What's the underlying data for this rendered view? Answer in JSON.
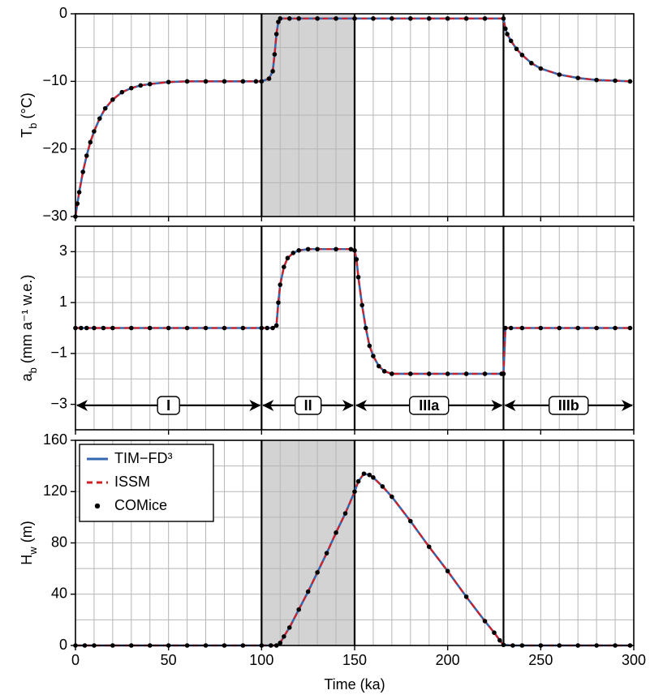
{
  "chart_data": [
    {
      "type": "line",
      "ylabel": {
        "text": "T",
        "sub": "b",
        "unit": " (°C)"
      },
      "xlim": [
        0,
        300
      ],
      "xticks": [
        0,
        50,
        100,
        150,
        200,
        250,
        300
      ],
      "show_xtick_labels": false,
      "xgrid": [
        10,
        20,
        30,
        40,
        50,
        60,
        70,
        80,
        90,
        110,
        120,
        130,
        140,
        160,
        170,
        180,
        190,
        200,
        210,
        220,
        240,
        250,
        260,
        270,
        280,
        290
      ],
      "ylim": [
        -30,
        0
      ],
      "yticks": [
        {
          "value": -30,
          "label": "−30"
        },
        {
          "value": -20,
          "label": "−20"
        },
        {
          "value": -10,
          "label": "−10"
        },
        0
      ],
      "ygrid": [
        -25,
        -20,
        -15,
        -10,
        -5
      ],
      "shade": [
        100,
        150
      ],
      "vlines": [
        100,
        150,
        230
      ],
      "x": [
        0,
        1,
        2,
        4,
        6,
        8,
        10,
        13,
        16,
        20,
        25,
        30,
        35,
        40,
        50,
        60,
        70,
        80,
        90,
        97,
        100,
        104,
        106,
        107,
        108,
        109,
        110,
        115,
        120,
        130,
        140,
        150,
        160,
        170,
        180,
        190,
        200,
        210,
        220,
        230,
        231,
        232,
        234,
        237,
        240,
        245,
        250,
        260,
        270,
        280,
        290,
        298
      ],
      "series": [
        {
          "color": "#3566b0",
          "style": "solid",
          "values": [
            -30,
            -28.1,
            -26.4,
            -23.4,
            -21,
            -19,
            -17.4,
            -15.5,
            -14,
            -12.7,
            -11.6,
            -11,
            -10.6,
            -10.4,
            -10.1,
            -10,
            -10,
            -10,
            -10,
            -10,
            -10,
            -9.6,
            -8.5,
            -6,
            -3,
            -1.2,
            -0.7,
            -0.7,
            -0.7,
            -0.7,
            -0.7,
            -0.7,
            -0.7,
            -0.7,
            -0.7,
            -0.7,
            -0.7,
            -0.7,
            -0.7,
            -0.7,
            -2.2,
            -3,
            -4,
            -5.2,
            -6.1,
            -7.3,
            -8.1,
            -9,
            -9.5,
            -9.8,
            -9.9,
            -10
          ]
        },
        {
          "color": "#d21f26",
          "style": "dashed",
          "values": [
            -30,
            -28.1,
            -26.4,
            -23.4,
            -21,
            -19,
            -17.4,
            -15.5,
            -14,
            -12.7,
            -11.6,
            -11,
            -10.6,
            -10.4,
            -10.1,
            -10,
            -10,
            -10,
            -10,
            -10,
            -10,
            -9.6,
            -8.5,
            -6,
            -3,
            -1.2,
            -0.7,
            -0.7,
            -0.7,
            -0.7,
            -0.7,
            -0.7,
            -0.7,
            -0.7,
            -0.7,
            -0.7,
            -0.7,
            -0.7,
            -0.7,
            -0.7,
            -2.2,
            -3,
            -4,
            -5.2,
            -6.1,
            -7.3,
            -8.1,
            -9,
            -9.5,
            -9.8,
            -9.9,
            -10
          ]
        },
        {
          "color": "#000000",
          "style": "dots",
          "values": [
            -30,
            -28.1,
            -26.4,
            -23.4,
            -21,
            -19,
            -17.4,
            -15.5,
            -14,
            -12.7,
            -11.6,
            -11,
            -10.6,
            -10.4,
            -10.1,
            -10,
            -10,
            -10,
            -10,
            -10,
            -10,
            -9.6,
            -8.5,
            -6,
            -3,
            -1.2,
            -0.7,
            -0.7,
            -0.7,
            -0.7,
            -0.7,
            -0.7,
            -0.7,
            -0.7,
            -0.7,
            -0.7,
            -0.7,
            -0.7,
            -0.7,
            -0.7,
            -2.2,
            -3,
            -4,
            -5.2,
            -6.1,
            -7.3,
            -8.1,
            -9,
            -9.5,
            -9.8,
            -9.9,
            -10
          ]
        }
      ]
    },
    {
      "type": "line",
      "ylabel": {
        "text": "a",
        "sub": "b",
        "unit": " (mm a⁻¹ w.e.)"
      },
      "xlim": [
        0,
        300
      ],
      "xticks": [
        0,
        50,
        100,
        150,
        200,
        250,
        300
      ],
      "show_xtick_labels": false,
      "xgrid": [
        10,
        20,
        30,
        40,
        50,
        60,
        70,
        80,
        90,
        110,
        120,
        130,
        140,
        160,
        170,
        180,
        190,
        200,
        210,
        220,
        240,
        250,
        260,
        270,
        280,
        290
      ],
      "ylim": [
        -4,
        4
      ],
      "yticks": [
        {
          "value": -3,
          "label": "−3"
        },
        {
          "value": -1,
          "label": "−1"
        },
        1,
        3
      ],
      "ygrid": [
        -3,
        -2,
        -1,
        0,
        1,
        2,
        3
      ],
      "vlines": [
        100,
        150,
        230
      ],
      "phases": [
        {
          "label": "I",
          "start": 0,
          "end": 100
        },
        {
          "label": "II",
          "start": 100,
          "end": 150
        },
        {
          "label": "IIIa",
          "start": 150,
          "end": 230
        },
        {
          "label": "IIIb",
          "start": 230,
          "end": 300
        }
      ],
      "x": [
        0,
        3,
        6,
        10,
        15,
        20,
        30,
        40,
        50,
        60,
        70,
        80,
        90,
        100,
        103,
        106,
        108,
        109,
        110,
        112,
        114,
        117,
        120,
        125,
        130,
        140,
        148,
        150,
        151,
        152,
        154,
        156,
        158,
        160,
        163,
        166,
        170,
        180,
        190,
        200,
        210,
        220,
        229,
        230,
        231,
        234,
        240,
        250,
        260,
        270,
        280,
        290,
        298
      ],
      "series": [
        {
          "color": "#3566b0",
          "style": "solid",
          "values": [
            0,
            0,
            0,
            0,
            0,
            0,
            0,
            0,
            0,
            0,
            0,
            0,
            0,
            0,
            0,
            0,
            0.1,
            1,
            1.7,
            2.4,
            2.75,
            2.95,
            3.05,
            3.1,
            3.1,
            3.1,
            3.1,
            3.05,
            2.7,
            2,
            0.9,
            0,
            -0.7,
            -1.1,
            -1.5,
            -1.7,
            -1.8,
            -1.8,
            -1.8,
            -1.8,
            -1.8,
            -1.8,
            -1.8,
            -1.8,
            0,
            0,
            0,
            0,
            0,
            0,
            0,
            0,
            0
          ]
        },
        {
          "color": "#d21f26",
          "style": "dashed",
          "values": [
            0,
            0,
            0,
            0,
            0,
            0,
            0,
            0,
            0,
            0,
            0,
            0,
            0,
            0,
            0,
            0,
            0.1,
            1,
            1.7,
            2.4,
            2.75,
            2.95,
            3.05,
            3.1,
            3.1,
            3.1,
            3.1,
            3.05,
            2.7,
            2,
            0.9,
            0,
            -0.7,
            -1.1,
            -1.5,
            -1.7,
            -1.8,
            -1.8,
            -1.8,
            -1.8,
            -1.8,
            -1.8,
            -1.8,
            -1.8,
            0,
            0,
            0,
            0,
            0,
            0,
            0,
            0,
            0
          ]
        },
        {
          "color": "#000000",
          "style": "dots",
          "values": [
            0,
            0,
            0,
            0,
            0,
            0,
            0,
            0,
            0,
            0,
            0,
            0,
            0,
            0,
            0,
            0,
            0.1,
            1,
            1.7,
            2.4,
            2.75,
            2.95,
            3.05,
            3.1,
            3.1,
            3.1,
            3.1,
            3.05,
            2.7,
            2,
            0.9,
            0,
            -0.7,
            -1.1,
            -1.5,
            -1.7,
            -1.8,
            -1.8,
            -1.8,
            -1.8,
            -1.8,
            -1.8,
            -1.8,
            -1.8,
            0,
            0,
            0,
            0,
            0,
            0,
            0,
            0,
            0
          ]
        }
      ]
    },
    {
      "type": "line",
      "ylabel": {
        "text": "H",
        "sub": "w",
        "unit": " (m)"
      },
      "xlabel": "Time (ka)",
      "xlim": [
        0,
        300
      ],
      "xticks": [
        0,
        50,
        100,
        150,
        200,
        250,
        300
      ],
      "show_xtick_labels": true,
      "xgrid": [
        10,
        20,
        30,
        40,
        50,
        60,
        70,
        80,
        90,
        110,
        120,
        130,
        140,
        160,
        170,
        180,
        190,
        200,
        210,
        220,
        240,
        250,
        260,
        270,
        280,
        290
      ],
      "ylim": [
        0,
        160
      ],
      "yticks": [
        0,
        40,
        80,
        120,
        160
      ],
      "ygrid": [
        20,
        40,
        60,
        80,
        100,
        120,
        140
      ],
      "shade": [
        100,
        150
      ],
      "vlines": [
        100,
        150,
        230
      ],
      "legend": "top-left",
      "x": [
        0,
        5,
        10,
        20,
        30,
        40,
        50,
        60,
        70,
        80,
        90,
        100,
        105,
        108,
        110,
        112,
        115,
        120,
        125,
        130,
        135,
        140,
        145,
        150,
        152,
        155,
        158,
        160,
        165,
        170,
        180,
        190,
        200,
        210,
        220,
        225,
        228,
        230,
        235,
        240,
        250,
        260,
        270,
        280,
        290,
        298
      ],
      "series": [
        {
          "name": "TIM−FD³",
          "color": "#3566b0",
          "style": "solid",
          "values": [
            0,
            0,
            0,
            0,
            0,
            0,
            0,
            0,
            0,
            0,
            0,
            0,
            0,
            0,
            2,
            7,
            14,
            28,
            42,
            57,
            72,
            88,
            103,
            120,
            128,
            134,
            133,
            131,
            124,
            116,
            97,
            77,
            58,
            38,
            19,
            10,
            4,
            0.5,
            0,
            0,
            0,
            0,
            0,
            0,
            0,
            0
          ]
        },
        {
          "name": "ISSM",
          "color": "#d21f26",
          "style": "dashed",
          "values": [
            0,
            0,
            0,
            0,
            0,
            0,
            0,
            0,
            0,
            0,
            0,
            0,
            0,
            0,
            2,
            7,
            14,
            28,
            42,
            57,
            72,
            88,
            103,
            120,
            128,
            134,
            133,
            131,
            124,
            116,
            97,
            77,
            58,
            38,
            19,
            10,
            4,
            0.5,
            0,
            0,
            0,
            0,
            0,
            0,
            0,
            0
          ]
        },
        {
          "name": "COMice",
          "color": "#000000",
          "style": "dots",
          "values": [
            0,
            0,
            0,
            0,
            0,
            0,
            0,
            0,
            0,
            0,
            0,
            0,
            0,
            0,
            2,
            7,
            14,
            28,
            42,
            57,
            72,
            88,
            103,
            120,
            128,
            134,
            133,
            131,
            124,
            116,
            97,
            77,
            58,
            38,
            19,
            10,
            4,
            0.5,
            0,
            0,
            0,
            0,
            0,
            0,
            0,
            0
          ]
        }
      ]
    }
  ]
}
